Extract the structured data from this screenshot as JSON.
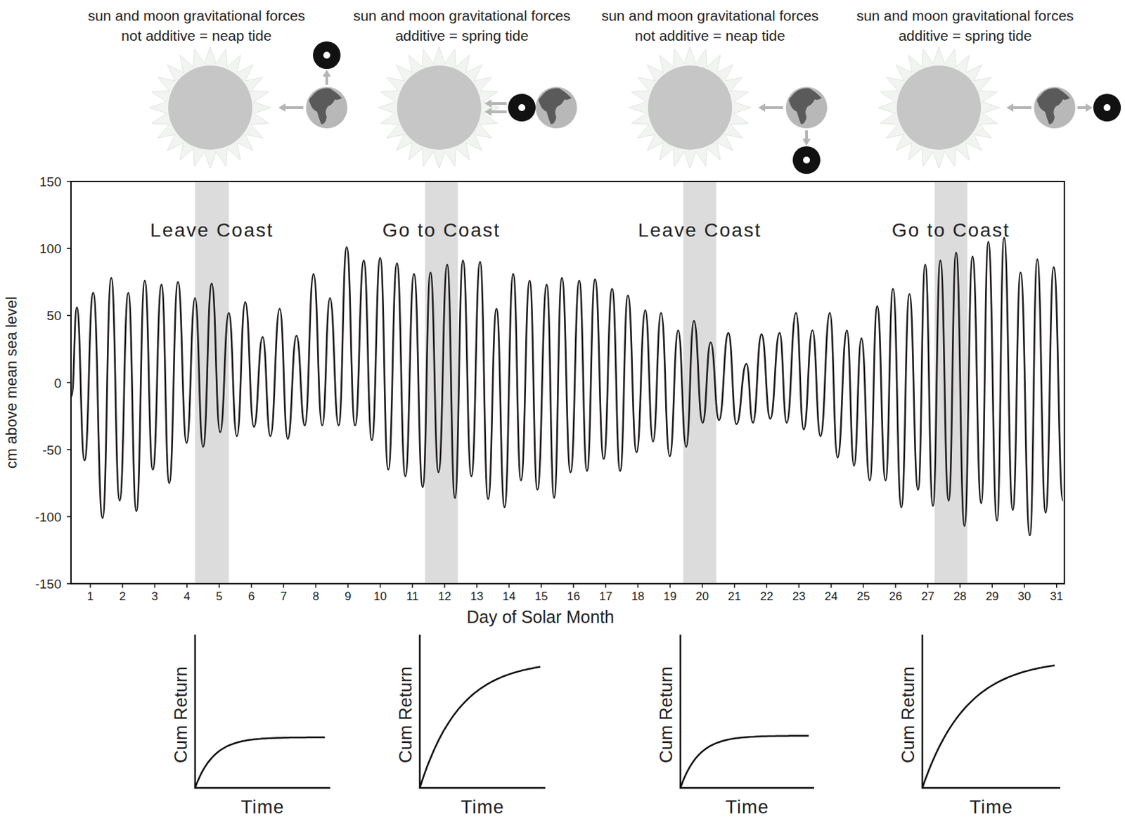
{
  "chart_data": {
    "type": "line",
    "xlabel": "Day of Solar Month",
    "ylabel": "cm above mean sea level",
    "color": "#231f20",
    "x": [
      0.42,
      0.58,
      0.82,
      1.09,
      1.38,
      1.65,
      1.91,
      2.18,
      2.43,
      2.69,
      2.94,
      3.21,
      3.45,
      3.72,
      3.99,
      4.25,
      4.5,
      4.77,
      5.03,
      5.3,
      5.55,
      5.81,
      6.08,
      6.35,
      6.59,
      6.88,
      7.13,
      7.4,
      7.66,
      7.93,
      8.2,
      8.44,
      8.71,
      8.96,
      9.22,
      9.49,
      9.74,
      10,
      10.25,
      10.52,
      10.78,
      11.05,
      11.32,
      11.56,
      11.81,
      12.08,
      12.32,
      12.57,
      12.83,
      13.1,
      13.35,
      13.61,
      13.86,
      14.13,
      14.37,
      14.64,
      14.88,
      15.17,
      15.4,
      15.64,
      15.91,
      16.18,
      16.42,
      16.67,
      16.94,
      17.2,
      17.45,
      17.69,
      17.96,
      18.23,
      18.47,
      18.72,
      18.99,
      19.25,
      19.5,
      19.74,
      20.01,
      20.26,
      20.52,
      20.81,
      21.06,
      21.37,
      21.57,
      21.84,
      22.11,
      22.4,
      22.62,
      22.91,
      23.15,
      23.42,
      23.67,
      23.96,
      24.2,
      24.49,
      24.71,
      24.94,
      25.2,
      25.43,
      25.69,
      25.92,
      26.18,
      26.43,
      26.7,
      26.92,
      27.16,
      27.39,
      27.65,
      27.88,
      28.14,
      28.39,
      28.66,
      28.88,
      29.15,
      29.37,
      29.64,
      29.88,
      30.17,
      30.4,
      30.66,
      30.91,
      31.2
    ],
    "values": [
      -10,
      56,
      -58,
      67,
      -101,
      78,
      -88,
      67,
      -96,
      76,
      -65,
      73,
      -75,
      75,
      -45,
      63,
      -48,
      74,
      -37,
      52,
      -40,
      60,
      -33,
      34,
      -40,
      55,
      -42,
      35,
      -32,
      81,
      -32,
      63,
      -32,
      101,
      -32,
      91,
      -43,
      93,
      -65,
      89,
      -70,
      81,
      -78,
      82,
      -67,
      88,
      -86,
      91,
      -70,
      90,
      -87,
      55,
      -93,
      81,
      -73,
      76,
      -80,
      73,
      -86,
      78,
      -67,
      76,
      -66,
      77,
      -57,
      70,
      -66,
      65,
      -52,
      54,
      -44,
      52,
      -55,
      39,
      -48,
      46,
      -30,
      30,
      -28,
      37,
      -31,
      14,
      -30,
      36,
      -27,
      37,
      -30,
      52,
      -35,
      39,
      -40,
      52,
      -56,
      39,
      -62,
      33,
      -73,
      57,
      -73,
      70,
      -93,
      66,
      -80,
      88,
      -92,
      91,
      -88,
      97,
      -107,
      94,
      -90,
      105,
      -103,
      108,
      -95,
      82,
      -114,
      92,
      -97,
      86,
      -88
    ],
    "xlim": [
      0.4,
      31.24
    ],
    "xticks": [
      1,
      2,
      3,
      4,
      5,
      6,
      7,
      8,
      9,
      10,
      11,
      12,
      13,
      14,
      15,
      16,
      17,
      18,
      19,
      20,
      21,
      22,
      23,
      24,
      25,
      26,
      27,
      28,
      29,
      30,
      31
    ],
    "ylim": [
      -150,
      150
    ],
    "yticks": [
      -150,
      -100,
      -50,
      0,
      50,
      100,
      150
    ],
    "bands": [
      {
        "x": [
          4.25,
          5.3
        ],
        "label": "Leave Coast"
      },
      {
        "x": [
          11.39,
          12.41
        ],
        "label": "Go to Coast"
      },
      {
        "x": [
          19.41,
          20.43
        ],
        "label": "Leave Coast"
      },
      {
        "x": [
          27.21,
          28.23
        ],
        "label": "Go to Coast"
      }
    ]
  },
  "diagrams": [
    {
      "title": "sun and moon gravitational forces not additive = neap tide"
    },
    {
      "title": "sun and moon gravitational forces additive = spring tide"
    },
    {
      "title": "sun and moon gravitational forces not additive = neap tide"
    },
    {
      "title": "sun and moon gravitational forces additive = spring tide"
    }
  ],
  "insets": [
    {
      "ylabel": "Cum Return",
      "xlabel": "Time"
    },
    {
      "ylabel": "Cum Return",
      "xlabel": "Time"
    },
    {
      "ylabel": "Cum Return",
      "xlabel": "Time"
    },
    {
      "ylabel": "Cum Return",
      "xlabel": "Time"
    }
  ]
}
